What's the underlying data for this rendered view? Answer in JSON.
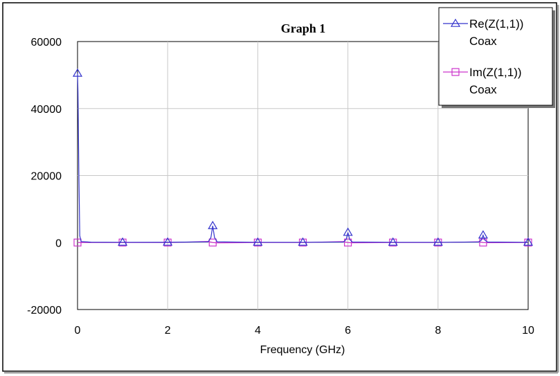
{
  "chart_data": {
    "type": "line",
    "title": "Graph 1",
    "xlabel": "Frequency (GHz)",
    "ylabel": "",
    "xlim": [
      0,
      10
    ],
    "ylim": [
      -20000,
      60000
    ],
    "x_ticks": [
      "0",
      "2",
      "4",
      "6",
      "8",
      "10"
    ],
    "y_ticks": [
      "60000",
      "40000",
      "20000",
      "0",
      "-20000"
    ],
    "grid": true,
    "legend_position": "top-right",
    "series": [
      {
        "name": "Re(Z(1,1))",
        "sub_label": "Coax",
        "color": "#3333cc",
        "marker": "triangle",
        "x": [
          0,
          0.01,
          0.03,
          0.05,
          0.08,
          0.3,
          1,
          2,
          2.9,
          2.96,
          3,
          3.04,
          3.1,
          4,
          5,
          5.9,
          5.96,
          6,
          6.04,
          6.1,
          7,
          8,
          8.9,
          8.96,
          9,
          9.04,
          9.1,
          10
        ],
        "y": [
          50500,
          45000,
          20000,
          2000,
          300,
          100,
          60,
          80,
          200,
          1500,
          5000,
          1500,
          200,
          60,
          60,
          150,
          900,
          3000,
          900,
          150,
          60,
          60,
          150,
          700,
          2200,
          700,
          150,
          60
        ],
        "marker_x": [
          0,
          1,
          2,
          3,
          4,
          5,
          6,
          7,
          8,
          9,
          10
        ],
        "marker_y": [
          50500,
          60,
          80,
          5000,
          60,
          60,
          3000,
          60,
          60,
          2200,
          60
        ]
      },
      {
        "name": "Im(Z(1,1))",
        "sub_label": "Coax",
        "color": "#cc33cc",
        "marker": "square",
        "x": [
          0,
          0.05,
          1,
          2,
          2.5,
          2.9,
          3,
          3.1,
          4,
          5,
          5.5,
          5.9,
          6,
          6.1,
          7,
          8,
          8.5,
          8.9,
          9,
          9.1,
          10
        ],
        "y": [
          0,
          0,
          0,
          0,
          150,
          350,
          0,
          -100,
          0,
          0,
          150,
          300,
          0,
          -80,
          0,
          0,
          120,
          250,
          0,
          -60,
          0
        ],
        "marker_x": [
          0,
          1,
          2,
          3,
          4,
          5,
          6,
          7,
          8,
          9,
          10
        ],
        "marker_y": [
          0,
          0,
          0,
          0,
          0,
          0,
          0,
          0,
          0,
          0,
          0
        ]
      }
    ]
  }
}
